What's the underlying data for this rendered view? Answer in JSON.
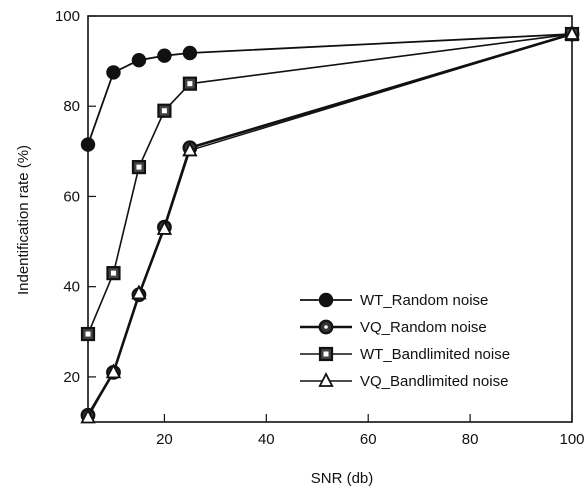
{
  "chart_data": {
    "type": "line",
    "xlabel": "SNR  (db)",
    "ylabel": "Indentification rate (%)",
    "xlim": [
      5,
      100
    ],
    "ylim": [
      10,
      100
    ],
    "xticks": [
      20,
      40,
      60,
      80,
      100
    ],
    "yticks": [
      20,
      40,
      60,
      80,
      100
    ],
    "legend_position": "bottom-right",
    "grid": false,
    "series": [
      {
        "name": "WT_Random  noise",
        "marker": "filled-circle",
        "x": [
          5,
          10,
          15,
          20,
          25,
          100
        ],
        "y": [
          71.5,
          87.5,
          90.2,
          91.2,
          91.8,
          96
        ]
      },
      {
        "name": "VQ_Random  noise",
        "marker": "dotted-circle",
        "x": [
          5,
          10,
          15,
          20,
          25,
          100
        ],
        "y": [
          11.5,
          21,
          38.2,
          53.2,
          70.8,
          96
        ]
      },
      {
        "name": "WT_Bandlimited  noise",
        "marker": "boxed-square",
        "x": [
          5,
          10,
          15,
          20,
          25,
          100
        ],
        "y": [
          29.5,
          43,
          66.5,
          79,
          85,
          96
        ]
      },
      {
        "name": "VQ_Bandlimited  noise",
        "marker": "triangle",
        "x": [
          5,
          10,
          15,
          20,
          25,
          100
        ],
        "y": [
          11,
          21,
          38.5,
          52.8,
          70.2,
          96
        ]
      }
    ]
  }
}
